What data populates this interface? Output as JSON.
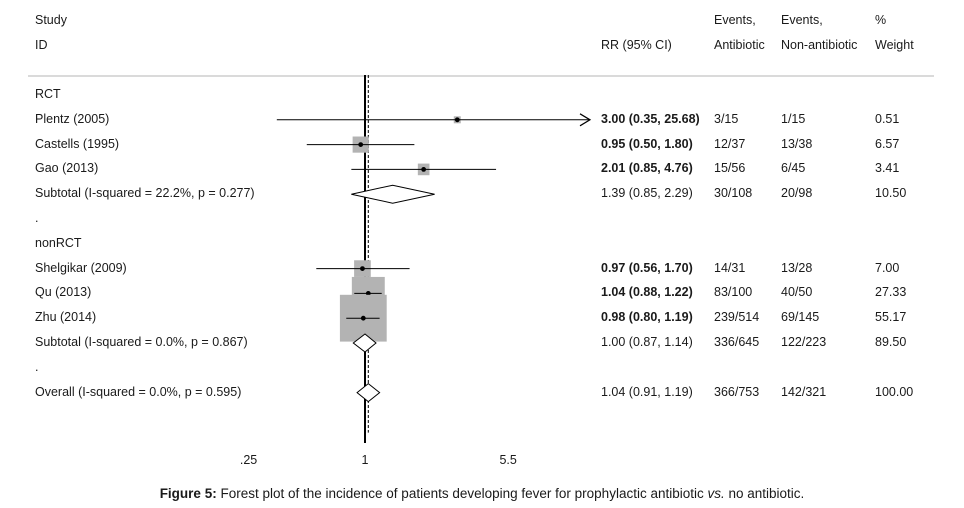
{
  "header": {
    "study_line1": "Study",
    "study_line2": "ID",
    "rr_label": "RR (95% CI)",
    "events_a_line1": "Events,",
    "events_a_line2": "Antibiotic",
    "events_b_line1": "Events,",
    "events_b_line2": "Non-antibiotic",
    "weight_line1": "%",
    "weight_line2": "Weight"
  },
  "caption": {
    "label": "Figure 5:",
    "text_before": " Forest plot of the incidence of patients developing fever for prophylactic antibiotic ",
    "vs": "vs.",
    "text_after": " no antibiotic."
  },
  "chart_data": {
    "type": "forest",
    "axis_ticks": [
      {
        "value": 0.25,
        "label": ".25"
      },
      {
        "value": 1,
        "label": "1"
      },
      {
        "value": 5.5,
        "label": "5.5"
      }
    ],
    "null_line": 1,
    "overall_line": 1.04,
    "rows": [
      {
        "kind": "group",
        "label": "RCT"
      },
      {
        "kind": "study",
        "label": "Plentz (2005)",
        "rr": 3.0,
        "lo": 0.35,
        "hi": 25.68,
        "ci_text": "3.00 (0.35, 25.68)",
        "events_a": "3/15",
        "events_b": "1/15",
        "weight": "0.51",
        "weight_value": 0.51,
        "arrow_right": true
      },
      {
        "kind": "study",
        "label": "Castells (1995)",
        "rr": 0.95,
        "lo": 0.5,
        "hi": 1.8,
        "ci_text": "0.95 (0.50, 1.80)",
        "events_a": "12/37",
        "events_b": "13/38",
        "weight": "6.57",
        "weight_value": 6.57
      },
      {
        "kind": "study",
        "label": "Gao (2013)",
        "rr": 2.01,
        "lo": 0.85,
        "hi": 4.76,
        "ci_text": "2.01 (0.85, 4.76)",
        "events_a": "15/56",
        "events_b": "6/45",
        "weight": "3.41",
        "weight_value": 3.41
      },
      {
        "kind": "subtotal",
        "label": "Subtotal  (I-squared = 22.2%, p = 0.277)",
        "rr": 1.39,
        "lo": 0.85,
        "hi": 2.29,
        "ci_text": "1.39 (0.85, 2.29)",
        "events_a": "30/108",
        "events_b": "20/98",
        "weight": "10.50"
      },
      {
        "kind": "spacer",
        "label": "."
      },
      {
        "kind": "group",
        "label": "nonRCT"
      },
      {
        "kind": "study",
        "label": "Shelgikar (2009)",
        "rr": 0.97,
        "lo": 0.56,
        "hi": 1.7,
        "ci_text": "0.97 (0.56, 1.70)",
        "events_a": "14/31",
        "events_b": "13/28",
        "weight": "7.00",
        "weight_value": 7.0
      },
      {
        "kind": "study",
        "label": "Qu (2013)",
        "rr": 1.04,
        "lo": 0.88,
        "hi": 1.22,
        "ci_text": "1.04 (0.88, 1.22)",
        "events_a": "83/100",
        "events_b": "40/50",
        "weight": "27.33",
        "weight_value": 27.33
      },
      {
        "kind": "study",
        "label": "Zhu (2014)",
        "rr": 0.98,
        "lo": 0.8,
        "hi": 1.19,
        "ci_text": "0.98 (0.80, 1.19)",
        "events_a": "239/514",
        "events_b": "69/145",
        "weight": "55.17",
        "weight_value": 55.17
      },
      {
        "kind": "subtotal",
        "label": "Subtotal  (I-squared = 0.0%, p = 0.867)",
        "rr": 1.0,
        "lo": 0.87,
        "hi": 1.14,
        "ci_text": "1.00 (0.87, 1.14)",
        "events_a": "336/645",
        "events_b": "122/223",
        "weight": "89.50"
      },
      {
        "kind": "spacer",
        "label": "."
      },
      {
        "kind": "overall",
        "label": "Overall  (I-squared = 0.0%, p = 0.595)",
        "rr": 1.04,
        "lo": 0.91,
        "hi": 1.19,
        "ci_text": "1.04 (0.91, 1.19)",
        "events_a": "366/753",
        "events_b": "142/321",
        "weight": "100.00"
      }
    ]
  }
}
